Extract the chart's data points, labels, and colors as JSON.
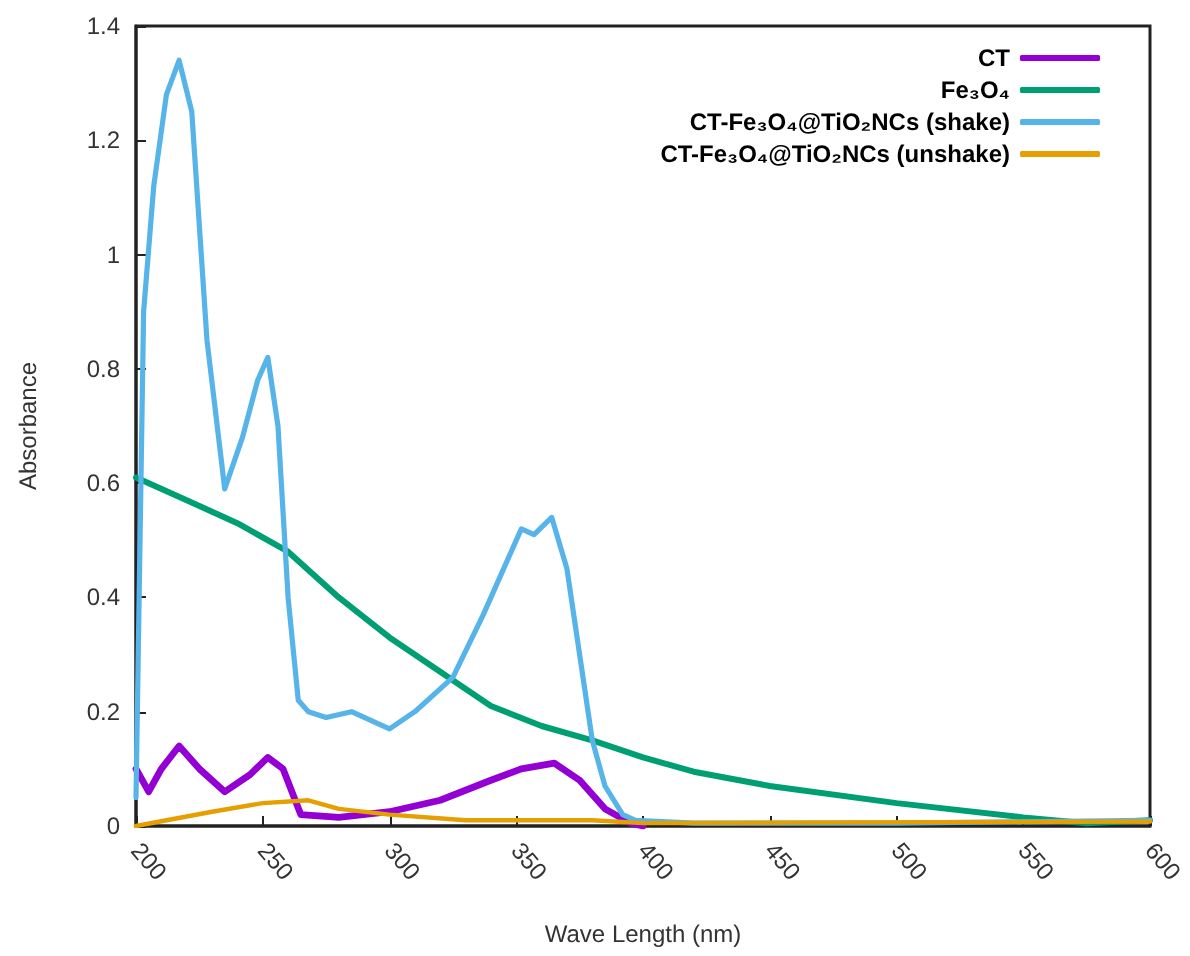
{
  "chart_data": {
    "type": "line",
    "xlabel": "Wave Length (nm)",
    "ylabel": "Absorbance",
    "xlim": [
      200,
      600
    ],
    "xticks": [
      200,
      250,
      300,
      350,
      400,
      450,
      500,
      550,
      600
    ],
    "ylim": [
      0,
      1.4
    ],
    "yticks": [
      0,
      0.2,
      0.4,
      0.6,
      0.8,
      1,
      1.2,
      1.4
    ],
    "grid": false,
    "legend": "top right",
    "marker": "none",
    "line_style": "solid",
    "series": [
      {
        "name": "CT",
        "color": "#9400d3",
        "x": [
          200,
          205,
          210,
          217,
          225,
          235,
          245,
          252,
          258,
          265,
          280,
          300,
          320,
          340,
          352,
          365,
          375,
          385,
          395,
          400
        ],
        "values": [
          0.1,
          0.06,
          0.1,
          0.14,
          0.1,
          0.06,
          0.09,
          0.12,
          0.1,
          0.02,
          0.015,
          0.025,
          0.045,
          0.08,
          0.1,
          0.11,
          0.08,
          0.03,
          0.005,
          0
        ]
      },
      {
        "name": "Fe₃O₄",
        "color": "#009e73",
        "x": [
          200,
          220,
          240,
          260,
          280,
          300,
          320,
          340,
          360,
          380,
          400,
          420,
          450,
          500,
          550,
          575,
          600
        ],
        "values": [
          0.61,
          0.57,
          0.53,
          0.48,
          0.4,
          0.33,
          0.27,
          0.21,
          0.175,
          0.15,
          0.12,
          0.095,
          0.07,
          0.04,
          0.015,
          0.005,
          0.01
        ]
      },
      {
        "name": "CT-Fe₃O₄@TiO₂NCs (shake)",
        "color": "#56b4e9",
        "x": [
          200,
          203,
          207,
          212,
          217,
          222,
          228,
          235,
          242,
          248,
          252,
          256,
          260,
          264,
          268,
          275,
          285,
          300,
          310,
          325,
          337,
          345,
          352,
          357,
          364,
          370,
          375,
          380,
          385,
          392,
          397,
          420,
          500,
          600
        ],
        "values": [
          0.05,
          0.9,
          1.12,
          1.28,
          1.34,
          1.25,
          0.85,
          0.59,
          0.68,
          0.78,
          0.82,
          0.7,
          0.4,
          0.22,
          0.2,
          0.19,
          0.2,
          0.17,
          0.2,
          0.26,
          0.37,
          0.45,
          0.52,
          0.51,
          0.54,
          0.45,
          0.3,
          0.15,
          0.07,
          0.02,
          0.01,
          0.005,
          0.005,
          0.01
        ]
      },
      {
        "name": "CT-Fe₃O₄@TiO₂NCs (unshake)",
        "color": "#e69f00",
        "x": [
          200,
          230,
          250,
          268,
          280,
          300,
          330,
          380,
          400,
          600
        ],
        "values": [
          0,
          0.025,
          0.04,
          0.045,
          0.03,
          0.02,
          0.01,
          0.01,
          0.005,
          0.008
        ]
      }
    ]
  }
}
